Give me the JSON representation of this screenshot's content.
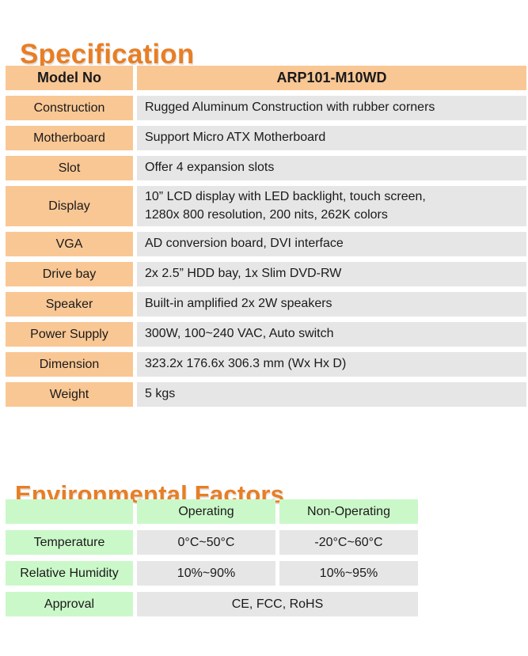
{
  "colors": {
    "heading_orange": "#E87E25",
    "label_peach": "#F9C794",
    "value_gray": "#E6E6E6",
    "env_green": "#CBF8C9",
    "text": "#1a1a1a"
  },
  "specification": {
    "title": "Specification",
    "header": {
      "label": "Model No",
      "value": "ARP101-M10WD"
    },
    "rows": [
      {
        "label": "Construction",
        "value": "Rugged Aluminum Construction with rubber corners"
      },
      {
        "label": "Motherboard",
        "value": "Support Micro ATX Motherboard"
      },
      {
        "label": "Slot",
        "value": "Offer 4 expansion slots"
      },
      {
        "label": "Display",
        "value": "10” LCD display with LED backlight, touch screen,\n1280x 800 resolution, 200 nits, 262K colors"
      },
      {
        "label": "VGA",
        "value": "AD conversion board, DVI interface"
      },
      {
        "label": "Drive bay",
        "value": "2x 2.5” HDD bay, 1x Slim DVD-RW"
      },
      {
        "label": "Speaker",
        "value": "Built-in amplified 2x 2W speakers"
      },
      {
        "label": "Power Supply",
        "value": "300W, 100~240 VAC, Auto switch"
      },
      {
        "label": "Dimension",
        "value": "323.2x 176.6x 306.3 mm (Wx Hx D)"
      },
      {
        "label": "Weight",
        "value": "5 kgs"
      }
    ]
  },
  "environmental": {
    "title": "Environmental Factors",
    "columns": {
      "corner": "",
      "operating": "Operating",
      "non_operating": "Non-Operating"
    },
    "rows": [
      {
        "label": "Temperature",
        "operating": "0°C~50°C",
        "non_operating": "-20°C~60°C"
      },
      {
        "label": "Relative Humidity",
        "operating": "10%~90%",
        "non_operating": "10%~95%"
      },
      {
        "label": "Approval",
        "merged": "CE, FCC, RoHS"
      }
    ]
  }
}
